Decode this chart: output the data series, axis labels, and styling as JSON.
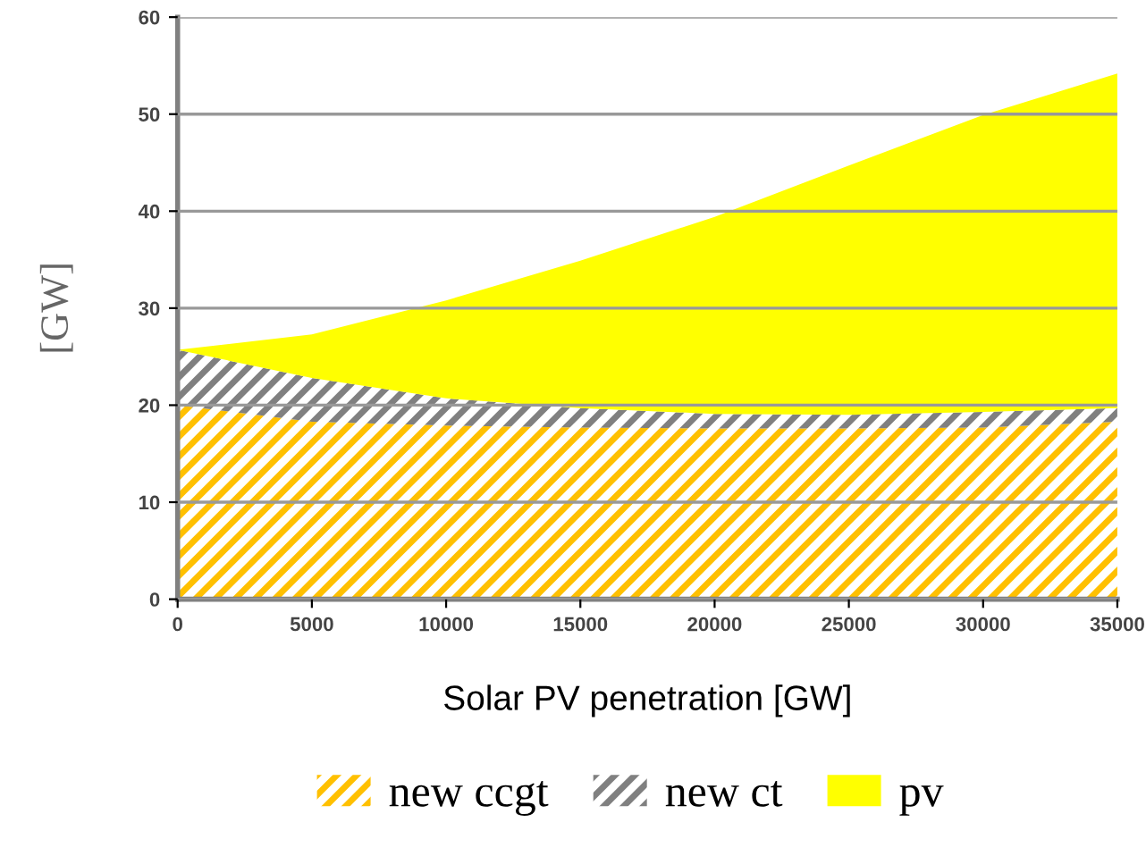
{
  "chart_data": {
    "type": "area",
    "stacked": true,
    "xlabel": "Solar PV penetration [GW]",
    "ylabel": "[GW]",
    "x": [
      0,
      5000,
      10000,
      15000,
      20000,
      25000,
      30000,
      35000
    ],
    "series": [
      {
        "name": "new ccgt",
        "color": "#ffc000",
        "values": [
          20,
          18.3,
          17.9,
          17.7,
          17.6,
          17.6,
          17.7,
          18.3
        ]
      },
      {
        "name": "new ct",
        "color": "#808080",
        "values": [
          5.7,
          4.5,
          2.8,
          2.0,
          1.5,
          1.4,
          1.6,
          1.4
        ]
      },
      {
        "name": "pv",
        "color": "#ffff00",
        "values": [
          0,
          4.5,
          10.1,
          15.2,
          20.3,
          25.7,
          30.6,
          34.5
        ]
      }
    ],
    "xlim": [
      0,
      35000
    ],
    "ylim": [
      0,
      60
    ],
    "xticks": [
      0,
      5000,
      10000,
      15000,
      20000,
      25000,
      30000,
      35000
    ],
    "yticks": [
      0,
      10,
      20,
      30,
      40,
      50,
      60
    ],
    "grid": "y",
    "legend": "bottom"
  }
}
